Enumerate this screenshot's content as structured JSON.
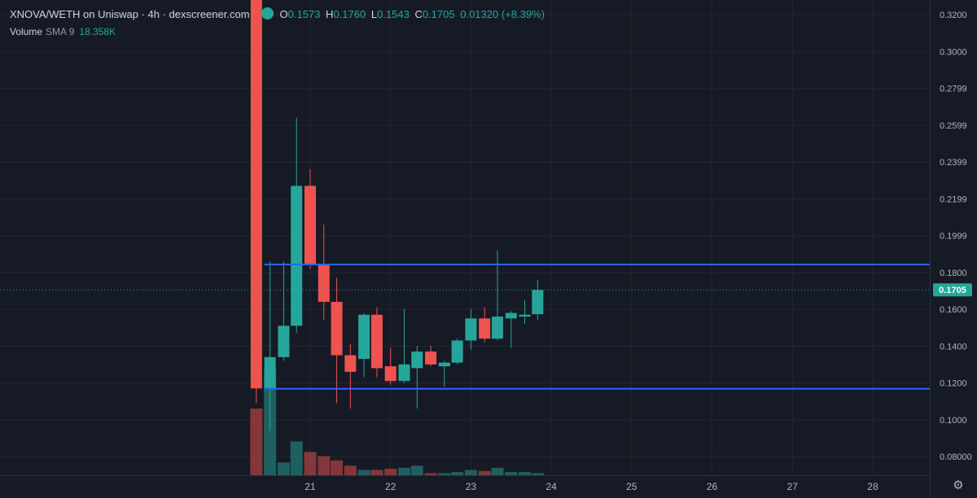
{
  "legend": {
    "title": "XNOVA/WETH on Uniswap · 4h · dexscreener.com",
    "o_label": "O",
    "o_value": "0.1573",
    "h_label": "H",
    "h_value": "0.1760",
    "l_label": "L",
    "l_value": "0.1543",
    "c_label": "C",
    "c_value": "0.1705",
    "change": "0.01320 (+8.39%)",
    "volume_label": "Volume",
    "sma_label": "SMA 9",
    "volume_value": "18.358K"
  },
  "colors": {
    "background": "#161a25",
    "up": "#26a69a",
    "down": "#ef5350",
    "hline": "#2962ff",
    "grid": "#232735",
    "axis_text": "#b2b5be"
  },
  "icons": {
    "settings": "gear-icon"
  },
  "chart_data": {
    "type": "candlestick",
    "y_axis_ticks": [
      "0.3200",
      "0.3000",
      "0.2799",
      "0.2599",
      "0.2399",
      "0.2199",
      "0.1999",
      "0.1800",
      "0.1600",
      "0.1400",
      "0.1200",
      "0.1000",
      "0.08000"
    ],
    "x_axis_ticks": [
      "21",
      "22",
      "23",
      "24",
      "25",
      "26",
      "27",
      "28"
    ],
    "last_price_label": "0.1705",
    "last_price": 0.1705,
    "horizontal_lines": [
      0.1843,
      0.1168
    ],
    "candles": [
      {
        "x": 20.33,
        "o": 0.33,
        "h": 0.33,
        "l": 0.109,
        "c": 0.117,
        "v": 0.63
      },
      {
        "x": 20.5,
        "o": 0.117,
        "h": 0.186,
        "l": 0.094,
        "c": 0.134,
        "v": 1.0
      },
      {
        "x": 20.67,
        "o": 0.134,
        "h": 0.186,
        "l": 0.132,
        "c": 0.151,
        "v": 0.12
      },
      {
        "x": 20.83,
        "o": 0.151,
        "h": 0.264,
        "l": 0.147,
        "c": 0.227,
        "v": 0.32
      },
      {
        "x": 21.0,
        "o": 0.227,
        "h": 0.236,
        "l": 0.182,
        "c": 0.184,
        "v": 0.22
      },
      {
        "x": 21.17,
        "o": 0.184,
        "h": 0.206,
        "l": 0.154,
        "c": 0.164,
        "v": 0.18
      },
      {
        "x": 21.33,
        "o": 0.164,
        "h": 0.177,
        "l": 0.109,
        "c": 0.135,
        "v": 0.14
      },
      {
        "x": 21.5,
        "o": 0.135,
        "h": 0.141,
        "l": 0.106,
        "c": 0.126,
        "v": 0.09
      },
      {
        "x": 21.67,
        "o": 0.133,
        "h": 0.158,
        "l": 0.123,
        "c": 0.157,
        "v": 0.05
      },
      {
        "x": 21.83,
        "o": 0.157,
        "h": 0.161,
        "l": 0.123,
        "c": 0.128,
        "v": 0.05
      },
      {
        "x": 22.0,
        "o": 0.129,
        "h": 0.139,
        "l": 0.119,
        "c": 0.121,
        "v": 0.06
      },
      {
        "x": 22.17,
        "o": 0.121,
        "h": 0.16,
        "l": 0.12,
        "c": 0.13,
        "v": 0.07
      },
      {
        "x": 22.33,
        "o": 0.128,
        "h": 0.14,
        "l": 0.106,
        "c": 0.137,
        "v": 0.09
      },
      {
        "x": 22.5,
        "o": 0.137,
        "h": 0.14,
        "l": 0.129,
        "c": 0.13,
        "v": 0.02
      },
      {
        "x": 22.67,
        "o": 0.129,
        "h": 0.132,
        "l": 0.118,
        "c": 0.131,
        "v": 0.02
      },
      {
        "x": 22.83,
        "o": 0.131,
        "h": 0.144,
        "l": 0.13,
        "c": 0.143,
        "v": 0.03
      },
      {
        "x": 23.0,
        "o": 0.143,
        "h": 0.16,
        "l": 0.138,
        "c": 0.155,
        "v": 0.05
      },
      {
        "x": 23.17,
        "o": 0.155,
        "h": 0.161,
        "l": 0.142,
        "c": 0.144,
        "v": 0.04
      },
      {
        "x": 23.33,
        "o": 0.144,
        "h": 0.192,
        "l": 0.143,
        "c": 0.156,
        "v": 0.07
      },
      {
        "x": 23.5,
        "o": 0.155,
        "h": 0.159,
        "l": 0.139,
        "c": 0.158,
        "v": 0.03
      },
      {
        "x": 23.67,
        "o": 0.156,
        "h": 0.165,
        "l": 0.152,
        "c": 0.157,
        "v": 0.03
      },
      {
        "x": 23.83,
        "o": 0.1573,
        "h": 0.176,
        "l": 0.1543,
        "c": 0.1705,
        "v": 0.02
      }
    ]
  }
}
